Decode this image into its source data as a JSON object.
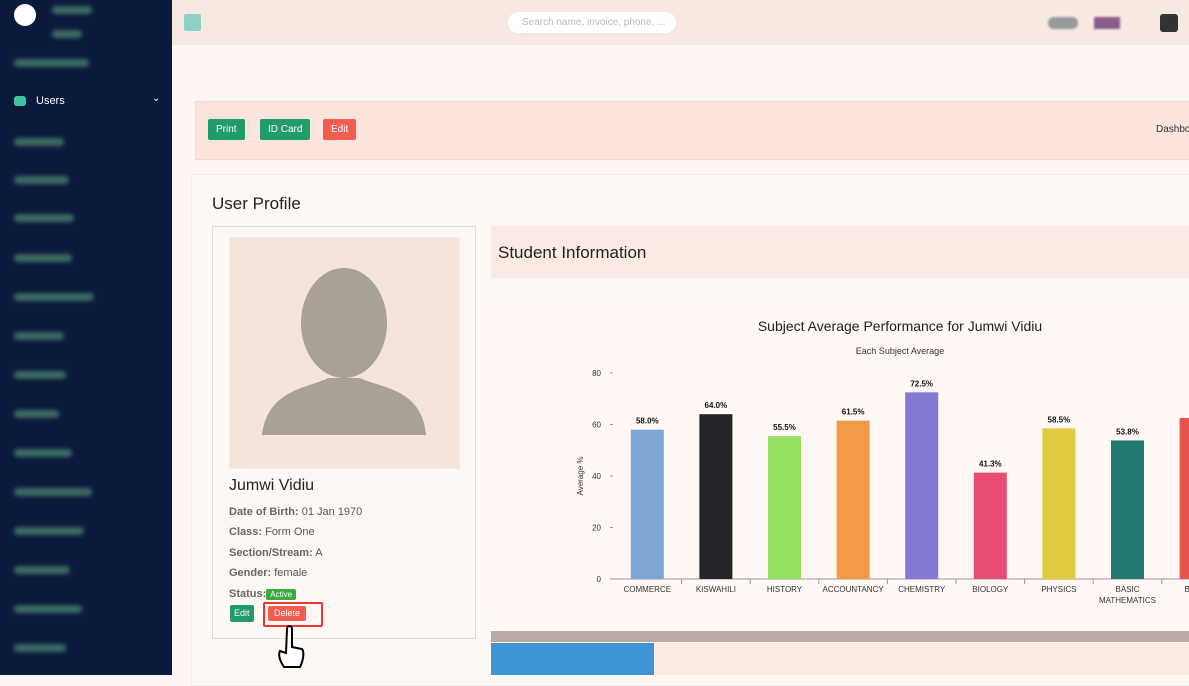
{
  "header": {
    "search_placeholder": "Search name, invoice, phone, ..."
  },
  "sidebar": {
    "active_item": "Users"
  },
  "toolbar": {
    "buttons": [
      "Print",
      "ID Card",
      "Edit"
    ],
    "breadcrumb": "Dashbo"
  },
  "profile": {
    "title": "User Profile",
    "name": "Jumwi Vidiu",
    "fields": [
      {
        "label": "Date of Birth:",
        "value": "01 Jan 1970"
      },
      {
        "label": "Class:",
        "value": "Form One"
      },
      {
        "label": "Section/Stream:",
        "value": "A"
      },
      {
        "label": "Gender:",
        "value": "female"
      }
    ],
    "status_label": "Status:",
    "status": "Active",
    "actions": [
      "Edit",
      "Delete"
    ]
  },
  "student_info": {
    "title": "Student Information"
  },
  "chart": {
    "type": "bar",
    "title": "Subject Average Performance for Jumwi Vidiu",
    "subtitle": "Each Subject Average",
    "y_label": "Average %",
    "categories": [
      "COMMERCE",
      "KISWAHILI",
      "HISTORY",
      "ACCOUNTANCY",
      "CHEMISTRY",
      "BIOLOGY",
      "PHYSICS",
      "BASIC MATHEMATICS",
      "BOOK"
    ],
    "values": [
      58.0,
      64.0,
      55.5,
      61.5,
      72.5,
      41.3,
      58.5,
      53.8,
      62.5
    ],
    "value_labels": [
      "58.0%",
      "64.0%",
      "55.5%",
      "61.5%",
      "72.5%",
      "41.3%",
      "58.5%",
      "53.8%",
      null
    ],
    "colors": [
      "#7fa7d6",
      "#242328",
      "#94e063",
      "#f39a45",
      "#8479d2",
      "#ea4d73",
      "#e3cb3f",
      "#22796f",
      "#e8534e"
    ],
    "ylim": [
      0,
      80
    ],
    "yticks": [
      0,
      20,
      40,
      60,
      80
    ]
  }
}
